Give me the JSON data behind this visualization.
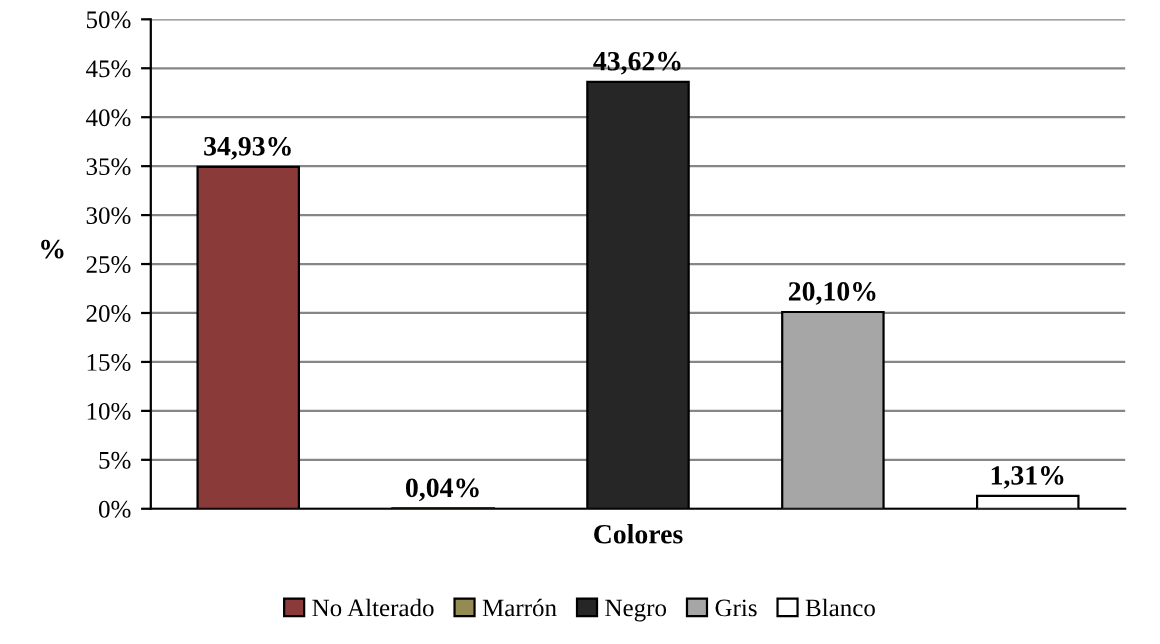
{
  "chart_data": {
    "type": "bar",
    "xlabel": "Colores",
    "ylabel": "%",
    "categories": [
      null,
      null,
      null,
      null,
      null
    ],
    "series": [
      {
        "name": "No Alterado",
        "color": "#8b3a3a",
        "values": [
          34.93,
          null,
          null,
          null,
          null
        ],
        "value_labels": [
          "34,93%",
          null,
          null,
          null,
          null
        ]
      },
      {
        "name": "Marrón",
        "color": "#948a54",
        "values": [
          null,
          0.04,
          null,
          null,
          null
        ],
        "value_labels": [
          null,
          "0,04%",
          null,
          null,
          null
        ]
      },
      {
        "name": "Negro",
        "color": "#262626",
        "values": [
          null,
          null,
          43.62,
          null,
          null
        ],
        "value_labels": [
          null,
          null,
          "43,62%",
          null,
          null
        ]
      },
      {
        "name": "Gris",
        "color": "#a6a6a6",
        "values": [
          null,
          null,
          null,
          20.1,
          null
        ],
        "value_labels": [
          null,
          null,
          null,
          "20,10%",
          null
        ]
      },
      {
        "name": "Blanco",
        "color": "#ffffff",
        "values": [
          null,
          null,
          null,
          null,
          1.31
        ],
        "value_labels": [
          null,
          null,
          null,
          null,
          "1,31%"
        ]
      }
    ],
    "ylim": [
      0,
      50
    ],
    "yticks": [
      {
        "value": 0,
        "label": "0%"
      },
      {
        "value": 5,
        "label": "5%"
      },
      {
        "value": 10,
        "label": "10%"
      },
      {
        "value": 15,
        "label": "15%"
      },
      {
        "value": 20,
        "label": "20%"
      },
      {
        "value": 25,
        "label": "25%"
      },
      {
        "value": 30,
        "label": "30%"
      },
      {
        "value": 35,
        "label": "35%"
      },
      {
        "value": 40,
        "label": "40%"
      },
      {
        "value": 45,
        "label": "45%"
      },
      {
        "value": 50,
        "label": "50%"
      }
    ],
    "grid": "y",
    "legend": "bottom",
    "tick_labels": "y"
  }
}
